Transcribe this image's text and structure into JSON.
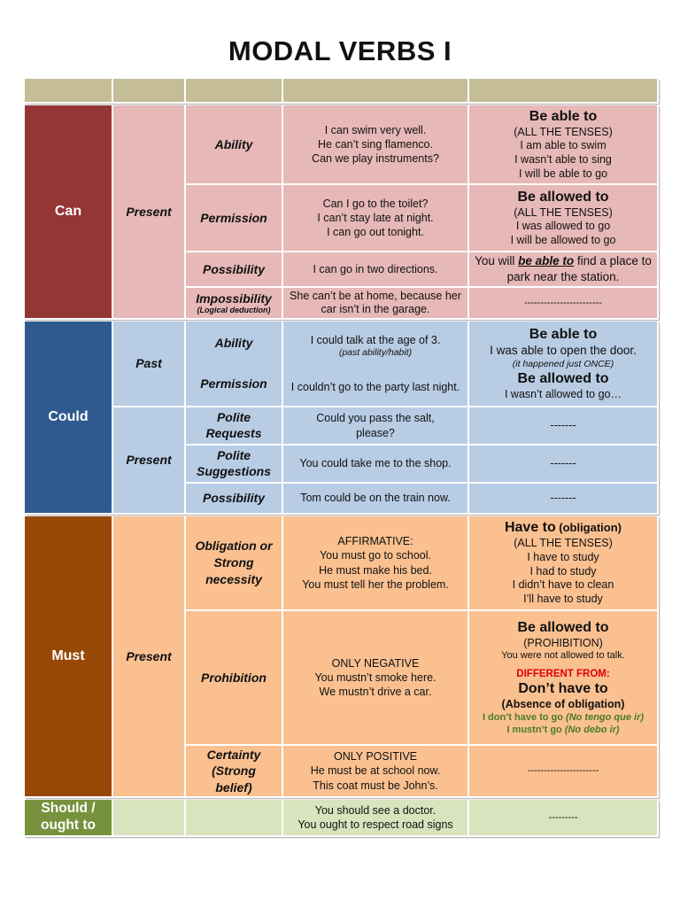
{
  "title": "MODAL VERBS I",
  "colors": {
    "header": "#c5bd96",
    "can_dark": "#943634",
    "can_light": "#e6b8b7",
    "could_dark": "#2f5a8f",
    "could_light": "#b8cce4",
    "must_dark": "#984807",
    "must_light": "#fac090",
    "should_dark": "#76923c",
    "should_light": "#d7e4bd"
  },
  "can": {
    "label": "Can",
    "tense": "Present",
    "ability": {
      "use": "Ability",
      "ex1": "I can swim very well.",
      "ex2": "He can’t sing flamenco.",
      "ex3": "Can we play instruments?",
      "alt_title": "Be able to",
      "alt1": "(ALL THE TENSES)",
      "alt2": "I am able to swim",
      "alt3": "I wasn’t able to sing",
      "alt4": "I will be able to go"
    },
    "permission": {
      "use": "Permission",
      "ex1": "Can I go to the toilet?",
      "ex2": "I can’t stay late at night.",
      "ex3": "I can go out tonight.",
      "alt_title": "Be allowed to",
      "alt1": "(ALL THE TENSES)",
      "alt2": "I was allowed to go",
      "alt3": "I will be allowed to go"
    },
    "possibility": {
      "use": "Possibility",
      "ex1": "I can go in two directions.",
      "alt_pre": "You will ",
      "alt_em": "be able to",
      "alt_post": " find a place to park near the station."
    },
    "impossibility": {
      "use": "Impossibility",
      "note": "(Logical deduction)",
      "ex1": "She can’t be at home, because her car isn’t in the garage.",
      "alt": "------------------------"
    }
  },
  "could": {
    "label": "Could",
    "past": {
      "tense": "Past",
      "use1": "Ability",
      "use2": "Permission",
      "ex1": "I could talk at the age of 3.",
      "ex1_note": "(past ability/habit)",
      "ex2": "I couldn’t go to the party last night.",
      "alt_title1": "Be able to",
      "alt1": "I was able to open the door.",
      "alt1_note": "(it happened just ONCE)",
      "alt_title2": "Be allowed to",
      "alt2": "I wasn’t allowed to go…"
    },
    "present": {
      "tense": "Present",
      "requests": {
        "use": "Polite Requests",
        "ex": "Could you pass the salt, please?",
        "alt": "-------"
      },
      "suggestions": {
        "use": "Polite Suggestions",
        "ex": "You could take me to the shop.",
        "alt": "-------"
      },
      "possibility": {
        "use": "Possibility",
        "ex": "Tom could be on the train now.",
        "alt": "-------"
      }
    }
  },
  "must": {
    "label": "Must",
    "tense": "Present",
    "obligation": {
      "use": "Obligation or Strong necessity",
      "ex0": "AFFIRMATIVE:",
      "ex1": "You must go to school.",
      "ex2": "He must make his bed.",
      "ex3": "You must tell her the problem.",
      "alt_title": "Have to",
      "alt_title_note": "(obligation)",
      "alt1": "(ALL THE TENSES)",
      "alt2": "I have to study",
      "alt3": "I had to study",
      "alt4": "I didn’t have to clean",
      "alt5": "I’ll have to study"
    },
    "prohibition": {
      "use": "Prohibition",
      "ex0": "ONLY NEGATIVE",
      "ex1": "You mustn’t smoke here.",
      "ex2": "We mustn’t drive a car.",
      "alt_title": "Be allowed to",
      "alt1": "(PROHIBITION)",
      "alt2": "You were not allowed to talk.",
      "diff": "DIFFERENT FROM:",
      "alt_title2": "Don’t have to",
      "alt3": "(Absence of obligation)",
      "alt4_a": "I don’t have to go ",
      "alt4_b": "(No tengo que ir)",
      "alt5_a": "I mustn’t go ",
      "alt5_b": "(No debo ir)"
    },
    "certainty": {
      "use": "Certainty (Strong belief)",
      "ex0": "ONLY POSITIVE",
      "ex1": "He must be at school now.",
      "ex2": "This coat must be John’s.",
      "alt": "----------------------"
    }
  },
  "should": {
    "label": "Should / ought to",
    "ex1": "You should see a doctor.",
    "ex2": "You ought to respect road signs",
    "alt": "---------"
  }
}
